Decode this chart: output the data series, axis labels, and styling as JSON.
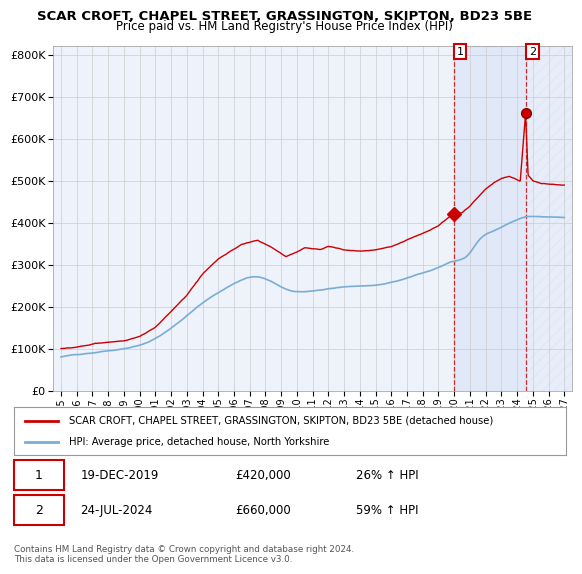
{
  "title1": "SCAR CROFT, CHAPEL STREET, GRASSINGTON, SKIPTON, BD23 5BE",
  "title2": "Price paid vs. HM Land Registry's House Price Index (HPI)",
  "legend_label1": "SCAR CROFT, CHAPEL STREET, GRASSINGTON, SKIPTON, BD23 5BE (detached house)",
  "legend_label2": "HPI: Average price, detached house, North Yorkshire",
  "footnote": "Contains HM Land Registry data © Crown copyright and database right 2024.\nThis data is licensed under the Open Government Licence v3.0.",
  "point1_date": "19-DEC-2019",
  "point1_price": "£420,000",
  "point1_hpi": "26% ↑ HPI",
  "point2_date": "24-JUL-2024",
  "point2_price": "£660,000",
  "point2_hpi": "59% ↑ HPI",
  "color_red": "#cc0000",
  "color_blue": "#7aadd4",
  "color_dashed": "#cc0000",
  "bg_color": "#eef2fb",
  "grid_color": "#cccccc",
  "ylim": [
    0,
    820000
  ],
  "yticks": [
    0,
    100000,
    200000,
    300000,
    400000,
    500000,
    600000,
    700000,
    800000
  ],
  "xlim_start": 1994.5,
  "xlim_end": 2027.5,
  "xticks": [
    1995,
    1996,
    1997,
    1998,
    1999,
    2000,
    2001,
    2002,
    2003,
    2004,
    2005,
    2006,
    2007,
    2008,
    2009,
    2010,
    2011,
    2012,
    2013,
    2014,
    2015,
    2016,
    2017,
    2018,
    2019,
    2020,
    2021,
    2022,
    2023,
    2024,
    2025,
    2026,
    2027
  ]
}
